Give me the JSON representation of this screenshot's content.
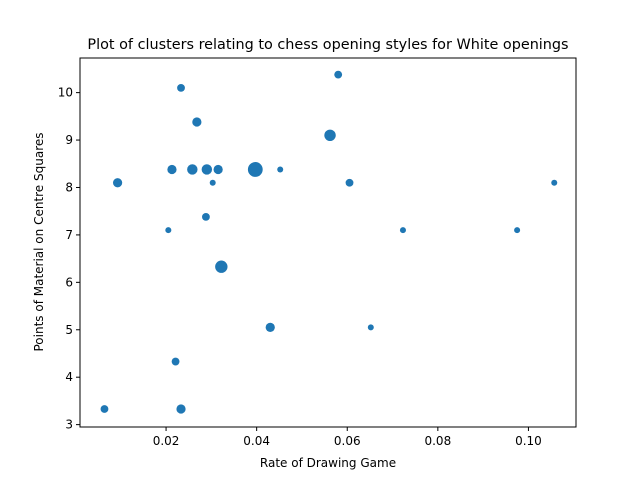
{
  "chart_data": {
    "type": "scatter",
    "title": "Plot of clusters relating to chess opening styles for White openings",
    "xlabel": "Rate of Drawing Game",
    "ylabel": "Points of Material on Centre Squares",
    "xlim": [
      0.001,
      0.1105
    ],
    "ylim": [
      2.95,
      10.73
    ],
    "xticks": [
      0.02,
      0.04,
      0.06,
      0.08,
      0.1
    ],
    "xtick_labels": [
      "0.02",
      "0.04",
      "0.06",
      "0.08",
      "0.10"
    ],
    "yticks": [
      3,
      4,
      5,
      6,
      7,
      8,
      9,
      10
    ],
    "ytick_labels": [
      "3",
      "4",
      "5",
      "6",
      "7",
      "8",
      "9",
      "10"
    ],
    "grid": false,
    "marker_color": "#1f77b4",
    "points": [
      {
        "x": 0.0064,
        "y": 3.33,
        "size": 2
      },
      {
        "x": 0.0093,
        "y": 8.1,
        "size": 3
      },
      {
        "x": 0.0205,
        "y": 7.1,
        "size": 1
      },
      {
        "x": 0.0213,
        "y": 8.38,
        "size": 3
      },
      {
        "x": 0.0221,
        "y": 4.33,
        "size": 2
      },
      {
        "x": 0.0233,
        "y": 10.1,
        "size": 2
      },
      {
        "x": 0.0233,
        "y": 3.33,
        "size": 3
      },
      {
        "x": 0.0258,
        "y": 8.38,
        "size": 4
      },
      {
        "x": 0.0268,
        "y": 9.38,
        "size": 3
      },
      {
        "x": 0.0288,
        "y": 7.38,
        "size": 2
      },
      {
        "x": 0.029,
        "y": 8.38,
        "size": 4
      },
      {
        "x": 0.0303,
        "y": 8.1,
        "size": 1
      },
      {
        "x": 0.0315,
        "y": 8.38,
        "size": 3
      },
      {
        "x": 0.0322,
        "y": 6.33,
        "size": 6
      },
      {
        "x": 0.0397,
        "y": 8.38,
        "size": 9
      },
      {
        "x": 0.043,
        "y": 5.05,
        "size": 3
      },
      {
        "x": 0.0452,
        "y": 8.38,
        "size": 1
      },
      {
        "x": 0.0562,
        "y": 9.1,
        "size": 5
      },
      {
        "x": 0.058,
        "y": 10.38,
        "size": 2
      },
      {
        "x": 0.0605,
        "y": 8.1,
        "size": 2
      },
      {
        "x": 0.0652,
        "y": 5.05,
        "size": 1
      },
      {
        "x": 0.0723,
        "y": 7.1,
        "size": 1
      },
      {
        "x": 0.0975,
        "y": 7.1,
        "size": 1
      },
      {
        "x": 0.1057,
        "y": 8.1,
        "size": 1
      }
    ]
  }
}
